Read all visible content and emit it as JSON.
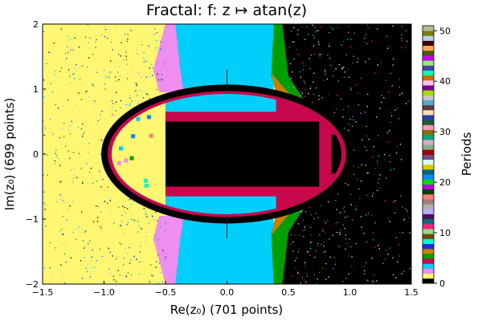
{
  "chart_data": {
    "type": "heatmap",
    "title": "Fractal: f: z ↦ atan(z)",
    "xlabel": "Re(z₀) (701 points)",
    "ylabel": "Im(z₀) (699 points)",
    "colorbar_label": "Periods",
    "xlim": [
      -1.5,
      1.5
    ],
    "ylim": [
      -2,
      2
    ],
    "xticks": [
      {
        "value": -1.5,
        "label": "−1.5"
      },
      {
        "value": -1.0,
        "label": "−1.0"
      },
      {
        "value": -0.5,
        "label": "−0.5"
      },
      {
        "value": 0.0,
        "label": "0.0"
      },
      {
        "value": 0.5,
        "label": "0.5"
      },
      {
        "value": 1.0,
        "label": "1.0"
      },
      {
        "value": 1.5,
        "label": "1.5"
      }
    ],
    "yticks": [
      {
        "value": -2,
        "label": "−2"
      },
      {
        "value": -1,
        "label": "−1"
      },
      {
        "value": 0,
        "label": "0"
      },
      {
        "value": 1,
        "label": "1"
      },
      {
        "value": 2,
        "label": "2"
      }
    ],
    "colorbar_range": [
      0,
      51
    ],
    "colorbar_ticks": [
      {
        "value": 0,
        "label": "0"
      },
      {
        "value": 10,
        "label": "10"
      },
      {
        "value": 20,
        "label": "20"
      },
      {
        "value": 30,
        "label": "30"
      },
      {
        "value": 40,
        "label": "40"
      },
      {
        "value": 50,
        "label": "50"
      }
    ],
    "palette": [
      "#000000",
      "#fff672",
      "#ee8eee",
      "#00cffb",
      "#c8074d",
      "#009d00",
      "#c78000",
      "#1d2bdf",
      "#00fcca",
      "#6f4600",
      "#8ddb8a",
      "#fb2378",
      "#0c6b80",
      "#4e0e59",
      "#b7abfa",
      "#afb2b0",
      "#a57b7c",
      "#fc7e72",
      "#004000",
      "#ba00d8",
      "#03dc03",
      "#0a88ff",
      "#00637b",
      "#ddc800",
      "#d2fefd",
      "#6b4f8a",
      "#9e0000",
      "#83ad90",
      "#d2b0c2",
      "#00a37c",
      "#8a7000",
      "#ff99bc",
      "#1b5a2c",
      "#2c3cab",
      "#f4e0b0",
      "#613a3a",
      "#55a8d2",
      "#c5c5c5",
      "#a3e000",
      "#790088",
      "#ffc0ee",
      "#c86b00",
      "#00ffaa",
      "#4444aa",
      "#95ec78",
      "#c300ff",
      "#4b5a00",
      "#ffab55",
      "#3e0000",
      "#b0d0f0",
      "#7c7c00",
      "#b8b89a"
    ],
    "regions": [
      {
        "name": "outer-left",
        "period": 1,
        "x": [
          -1.5,
          -0.45
        ]
      },
      {
        "name": "outer-center",
        "period": 3,
        "x": [
          -0.45,
          0.38
        ]
      },
      {
        "name": "outer-right",
        "period": 0,
        "x": [
          0.45,
          1.5
        ]
      },
      {
        "name": "ring",
        "period": 0,
        "center": [
          0,
          0
        ],
        "radii": [
          0.97,
          0.95
        ]
      },
      {
        "name": "inner-core",
        "period": 0,
        "x": [
          -0.5,
          0.9
        ],
        "y": [
          -0.5,
          0.5
        ]
      }
    ]
  }
}
